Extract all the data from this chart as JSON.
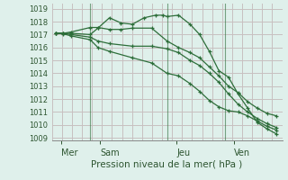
{
  "bg_color": "#dff0eb",
  "grid_color_h": "#c8ddd8",
  "grid_color_v": "#c8c0c0",
  "line_color": "#2d6e3a",
  "title": "Pression niveau de la mer( hPa )",
  "ylabel_values": [
    1009,
    1010,
    1011,
    1012,
    1013,
    1014,
    1015,
    1016,
    1017,
    1018,
    1019
  ],
  "ylim": [
    1008.8,
    1019.4
  ],
  "xlim": [
    -0.2,
    11.8
  ],
  "day_labels": [
    "Mer",
    "Sam",
    "Jeu",
    "Ven"
  ],
  "day_positions": [
    0.3,
    2.3,
    6.3,
    9.3
  ],
  "vline_positions": [
    1.8,
    5.8,
    8.8
  ],
  "series": [
    {
      "x": [
        0,
        0.4,
        0.8,
        1.8,
        2.2,
        2.8,
        3.4,
        4.0,
        4.6,
        5.2,
        5.6,
        5.8,
        6.4,
        7.0,
        7.5,
        8.0,
        8.5,
        9.0,
        9.5,
        10.0,
        10.5,
        11.0,
        11.5
      ],
      "y": [
        1017.1,
        1017.1,
        1017.1,
        1017.0,
        1017.5,
        1018.3,
        1017.9,
        1017.8,
        1018.3,
        1018.5,
        1018.5,
        1018.4,
        1018.5,
        1017.8,
        1017.0,
        1015.7,
        1014.2,
        1013.7,
        1012.4,
        1011.3,
        1010.2,
        1009.7,
        1009.3
      ]
    },
    {
      "x": [
        0,
        0.4,
        0.8,
        1.8,
        2.2,
        2.8,
        3.4,
        4.0,
        5.0,
        5.8,
        6.4,
        7.0,
        7.5,
        8.0,
        8.5,
        9.0,
        9.5,
        10.0,
        10.5,
        11.0,
        11.5
      ],
      "y": [
        1017.1,
        1017.1,
        1017.2,
        1017.55,
        1017.55,
        1017.4,
        1017.4,
        1017.5,
        1017.5,
        1016.5,
        1016.0,
        1015.6,
        1015.2,
        1014.5,
        1013.8,
        1013.0,
        1012.5,
        1011.8,
        1011.3,
        1010.9,
        1010.7
      ]
    },
    {
      "x": [
        0,
        0.4,
        0.8,
        1.8,
        2.2,
        2.8,
        4.0,
        5.0,
        5.8,
        6.4,
        7.0,
        7.5,
        8.0,
        8.5,
        9.0,
        9.5,
        10.0,
        10.5,
        11.0,
        11.5
      ],
      "y": [
        1017.1,
        1017.1,
        1017.0,
        1016.8,
        1016.5,
        1016.3,
        1016.1,
        1016.1,
        1015.9,
        1015.6,
        1015.0,
        1014.6,
        1014.0,
        1013.3,
        1012.4,
        1011.6,
        1011.0,
        1010.5,
        1010.1,
        1009.8
      ]
    },
    {
      "x": [
        0,
        0.4,
        0.8,
        1.8,
        2.2,
        2.8,
        4.0,
        5.0,
        5.8,
        6.4,
        7.0,
        7.5,
        8.0,
        8.5,
        9.0,
        9.5,
        10.0,
        10.5,
        11.0,
        11.5
      ],
      "y": [
        1017.1,
        1017.05,
        1016.9,
        1016.6,
        1016.0,
        1015.7,
        1015.2,
        1014.8,
        1014.0,
        1013.8,
        1013.2,
        1012.6,
        1011.9,
        1011.4,
        1011.1,
        1011.0,
        1010.7,
        1010.3,
        1009.9,
        1009.6
      ]
    }
  ]
}
